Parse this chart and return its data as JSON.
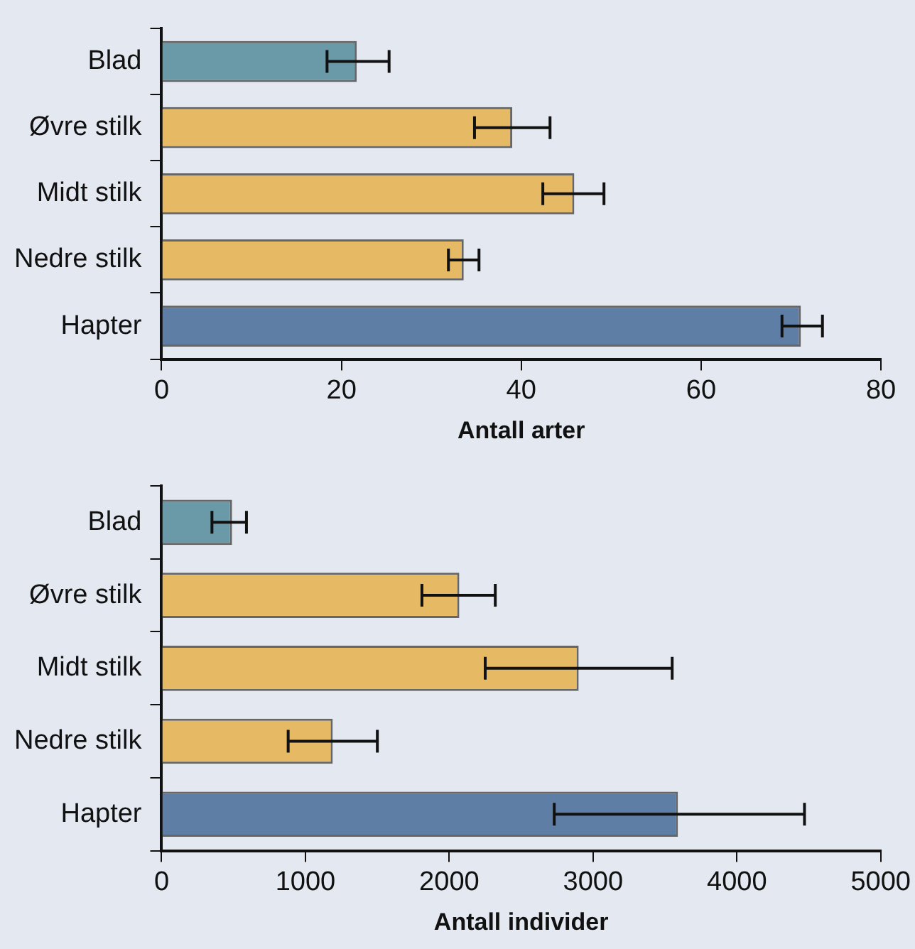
{
  "chart_data": [
    {
      "type": "bar",
      "orientation": "horizontal",
      "categories": [
        "Blad",
        "Øvre stilk",
        "Midt stilk",
        "Nedre stilk",
        "Hapter"
      ],
      "values": [
        21.7,
        39.0,
        45.9,
        33.6,
        71.1
      ],
      "colors": [
        "#6a9aa8",
        "#e6b965",
        "#e6b965",
        "#e6b965",
        "#5f7ea5"
      ],
      "errors": [
        [
          18.4,
          25.3
        ],
        [
          34.8,
          43.2
        ],
        [
          42.4,
          49.2
        ],
        [
          31.9,
          35.3
        ],
        [
          69.0,
          73.5
        ]
      ],
      "xlim": [
        0,
        80
      ],
      "xticks": [
        0,
        20,
        40,
        60,
        80
      ],
      "xlabel": "Antall arter",
      "grid": false,
      "legend": false
    },
    {
      "type": "bar",
      "orientation": "horizontal",
      "categories": [
        "Blad",
        "Øvre stilk",
        "Midt stilk",
        "Nedre stilk",
        "Hapter"
      ],
      "values": [
        490,
        2070,
        2900,
        1190,
        3590
      ],
      "colors": [
        "#6a9aa8",
        "#e6b965",
        "#e6b965",
        "#e6b965",
        "#5f7ea5"
      ],
      "errors": [
        [
          350,
          590
        ],
        [
          1810,
          2320
        ],
        [
          2250,
          3550
        ],
        [
          880,
          1500
        ],
        [
          2730,
          4470
        ]
      ],
      "xlim": [
        0,
        5000
      ],
      "xticks": [
        0,
        1000,
        2000,
        3000,
        4000,
        5000
      ],
      "xlabel": "Antall individer",
      "grid": false,
      "legend": false
    }
  ]
}
